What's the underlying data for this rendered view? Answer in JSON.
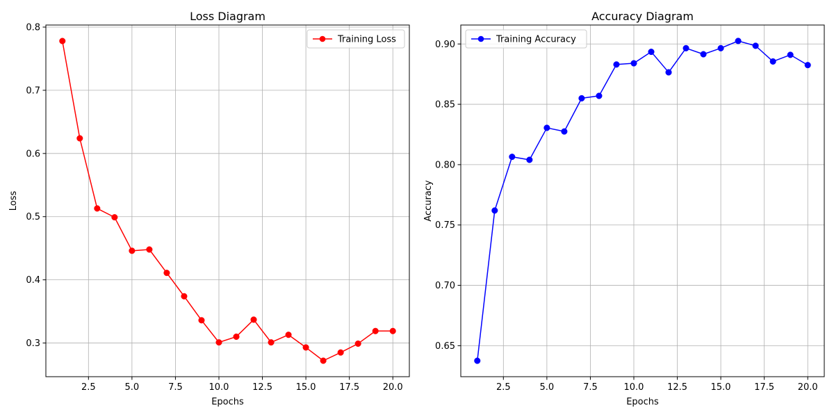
{
  "chart_data": [
    {
      "type": "line",
      "title": "Loss Diagram",
      "xlabel": "Epochs",
      "ylabel": "Loss",
      "x": [
        1,
        2,
        3,
        4,
        5,
        6,
        7,
        8,
        9,
        10,
        11,
        12,
        13,
        14,
        15,
        16,
        17,
        18,
        19,
        20
      ],
      "series": [
        {
          "name": "Training Loss",
          "color": "#ff0000",
          "marker": "circle",
          "values": [
            0.778,
            0.624,
            0.513,
            0.499,
            0.446,
            0.448,
            0.411,
            0.374,
            0.336,
            0.301,
            0.31,
            0.337,
            0.301,
            0.313,
            0.293,
            0.272,
            0.285,
            0.299,
            0.319,
            0.319
          ]
        }
      ],
      "xlim": [
        0.05,
        20.95
      ],
      "ylim": [
        0.2467,
        0.8033
      ],
      "xticks": [
        2.5,
        5.0,
        7.5,
        10.0,
        12.5,
        15.0,
        17.5,
        20.0
      ],
      "xticklabels": [
        "2.5",
        "5.0",
        "7.5",
        "10.0",
        "12.5",
        "15.0",
        "17.5",
        "20.0"
      ],
      "yticks": [
        0.3,
        0.4,
        0.5,
        0.6,
        0.7,
        0.8
      ],
      "yticklabels": [
        "0.3",
        "0.4",
        "0.5",
        "0.6",
        "0.7",
        "0.8"
      ],
      "grid": true,
      "legend": "top-right"
    },
    {
      "type": "line",
      "title": "Accuracy Diagram",
      "xlabel": "Epochs",
      "ylabel": "Accuracy",
      "x": [
        1,
        2,
        3,
        4,
        5,
        6,
        7,
        8,
        9,
        10,
        11,
        12,
        13,
        14,
        15,
        16,
        17,
        18,
        19,
        20
      ],
      "series": [
        {
          "name": "Training Accuracy",
          "color": "#0000ff",
          "marker": "circle",
          "values": [
            0.6375,
            0.762,
            0.8065,
            0.804,
            0.8305,
            0.8275,
            0.855,
            0.857,
            0.883,
            0.884,
            0.8935,
            0.8765,
            0.8965,
            0.8915,
            0.8965,
            0.9025,
            0.8985,
            0.8855,
            0.891,
            0.8825
          ]
        }
      ],
      "xlim": [
        0.05,
        20.95
      ],
      "ylim": [
        0.6243,
        0.9157
      ],
      "xticks": [
        2.5,
        5.0,
        7.5,
        10.0,
        12.5,
        15.0,
        17.5,
        20.0
      ],
      "xticklabels": [
        "2.5",
        "5.0",
        "7.5",
        "10.0",
        "12.5",
        "15.0",
        "17.5",
        "20.0"
      ],
      "yticks": [
        0.65,
        0.7,
        0.75,
        0.8,
        0.85,
        0.9
      ],
      "yticklabels": [
        "0.65",
        "0.70",
        "0.75",
        "0.80",
        "0.85",
        "0.90"
      ],
      "grid": true,
      "legend": "top-left"
    }
  ]
}
